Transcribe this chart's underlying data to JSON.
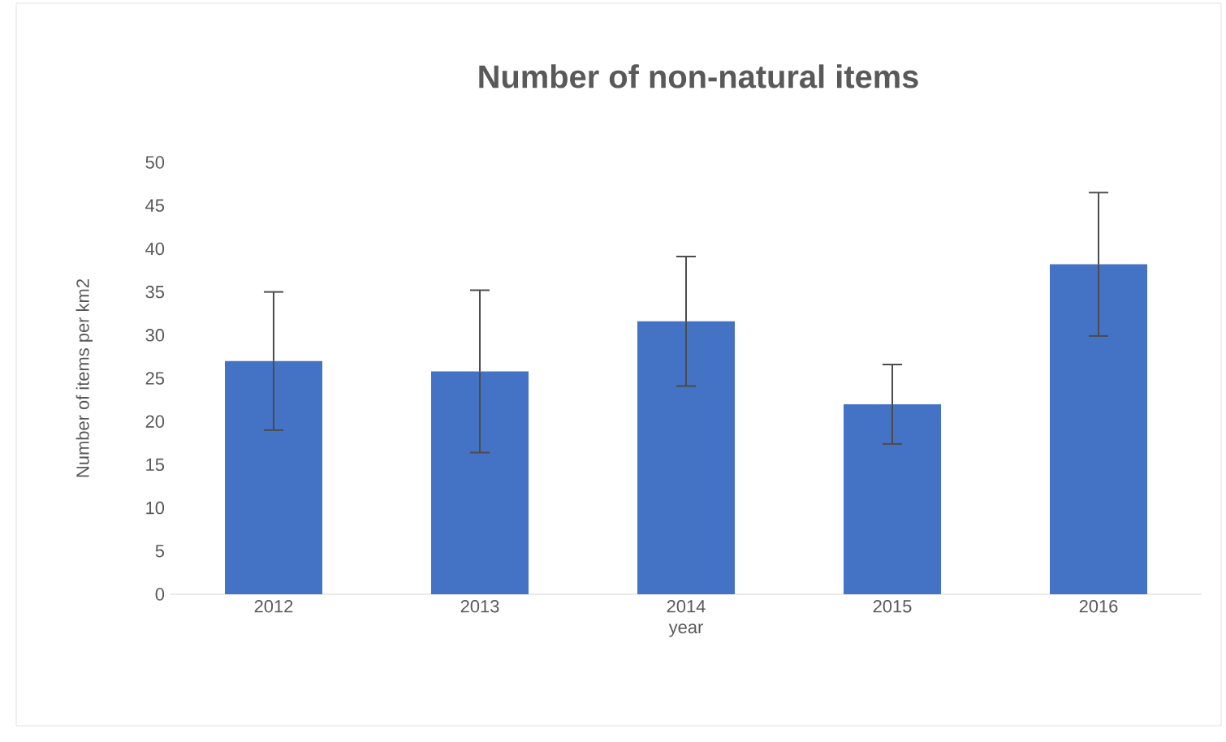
{
  "chart_data": {
    "type": "bar",
    "title": "Number of non-natural items",
    "xlabel": "year",
    "ylabel": "Number of items per km2",
    "categories": [
      "2012",
      "2013",
      "2014",
      "2015",
      "2016"
    ],
    "values": [
      27,
      25.8,
      31.6,
      22,
      38.2
    ],
    "errors": [
      8,
      9.4,
      7.5,
      4.6,
      8.3
    ],
    "color": "#4472c4",
    "ylim": [
      0,
      50
    ],
    "yticks": [
      0,
      5,
      10,
      15,
      20,
      25,
      30,
      35,
      40,
      45,
      50
    ]
  }
}
